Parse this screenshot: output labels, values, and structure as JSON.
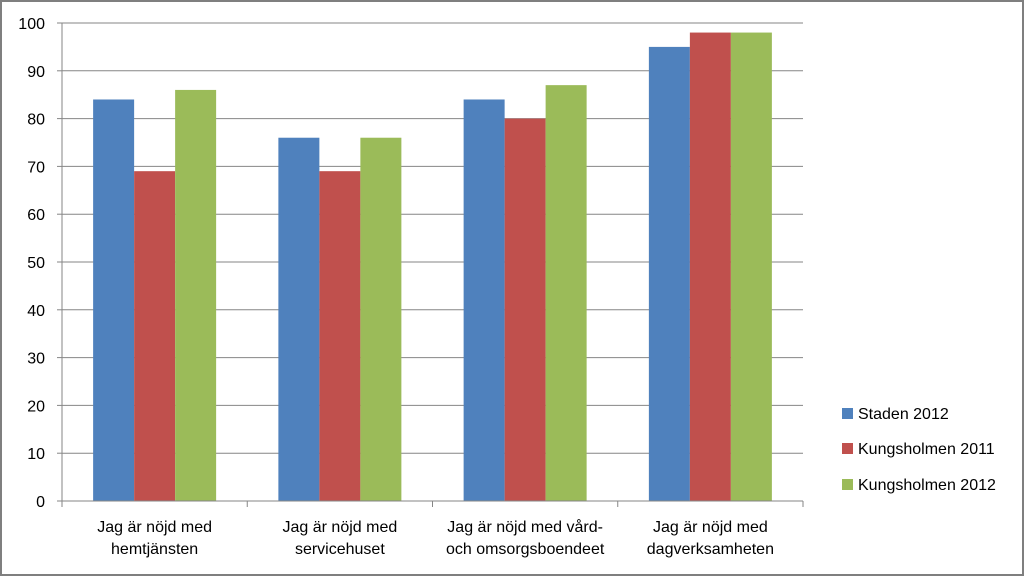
{
  "chart_data": {
    "type": "bar",
    "title": "",
    "xlabel": "",
    "ylabel": "",
    "ylim": [
      0,
      100
    ],
    "yticks": [
      0,
      10,
      20,
      30,
      40,
      50,
      60,
      70,
      80,
      90,
      100
    ],
    "grid": true,
    "legend_position": "right",
    "categories": [
      [
        "Jag är nöjd med",
        "hemtjänsten"
      ],
      [
        "Jag är nöjd med",
        "servicehuset"
      ],
      [
        "Jag är nöjd med vård-",
        "och omsorgsboendeet"
      ],
      [
        "Jag är nöjd med",
        "dagverksamheten"
      ]
    ],
    "series": [
      {
        "name": "Staden 2012",
        "color": "#4f81bd",
        "values": [
          84,
          76,
          84,
          95
        ]
      },
      {
        "name": "Kungsholmen 2011",
        "color": "#c0504d",
        "values": [
          69,
          69,
          80,
          98
        ]
      },
      {
        "name": "Kungsholmen 2012",
        "color": "#9bbb59",
        "values": [
          86,
          76,
          87,
          98
        ]
      }
    ]
  }
}
